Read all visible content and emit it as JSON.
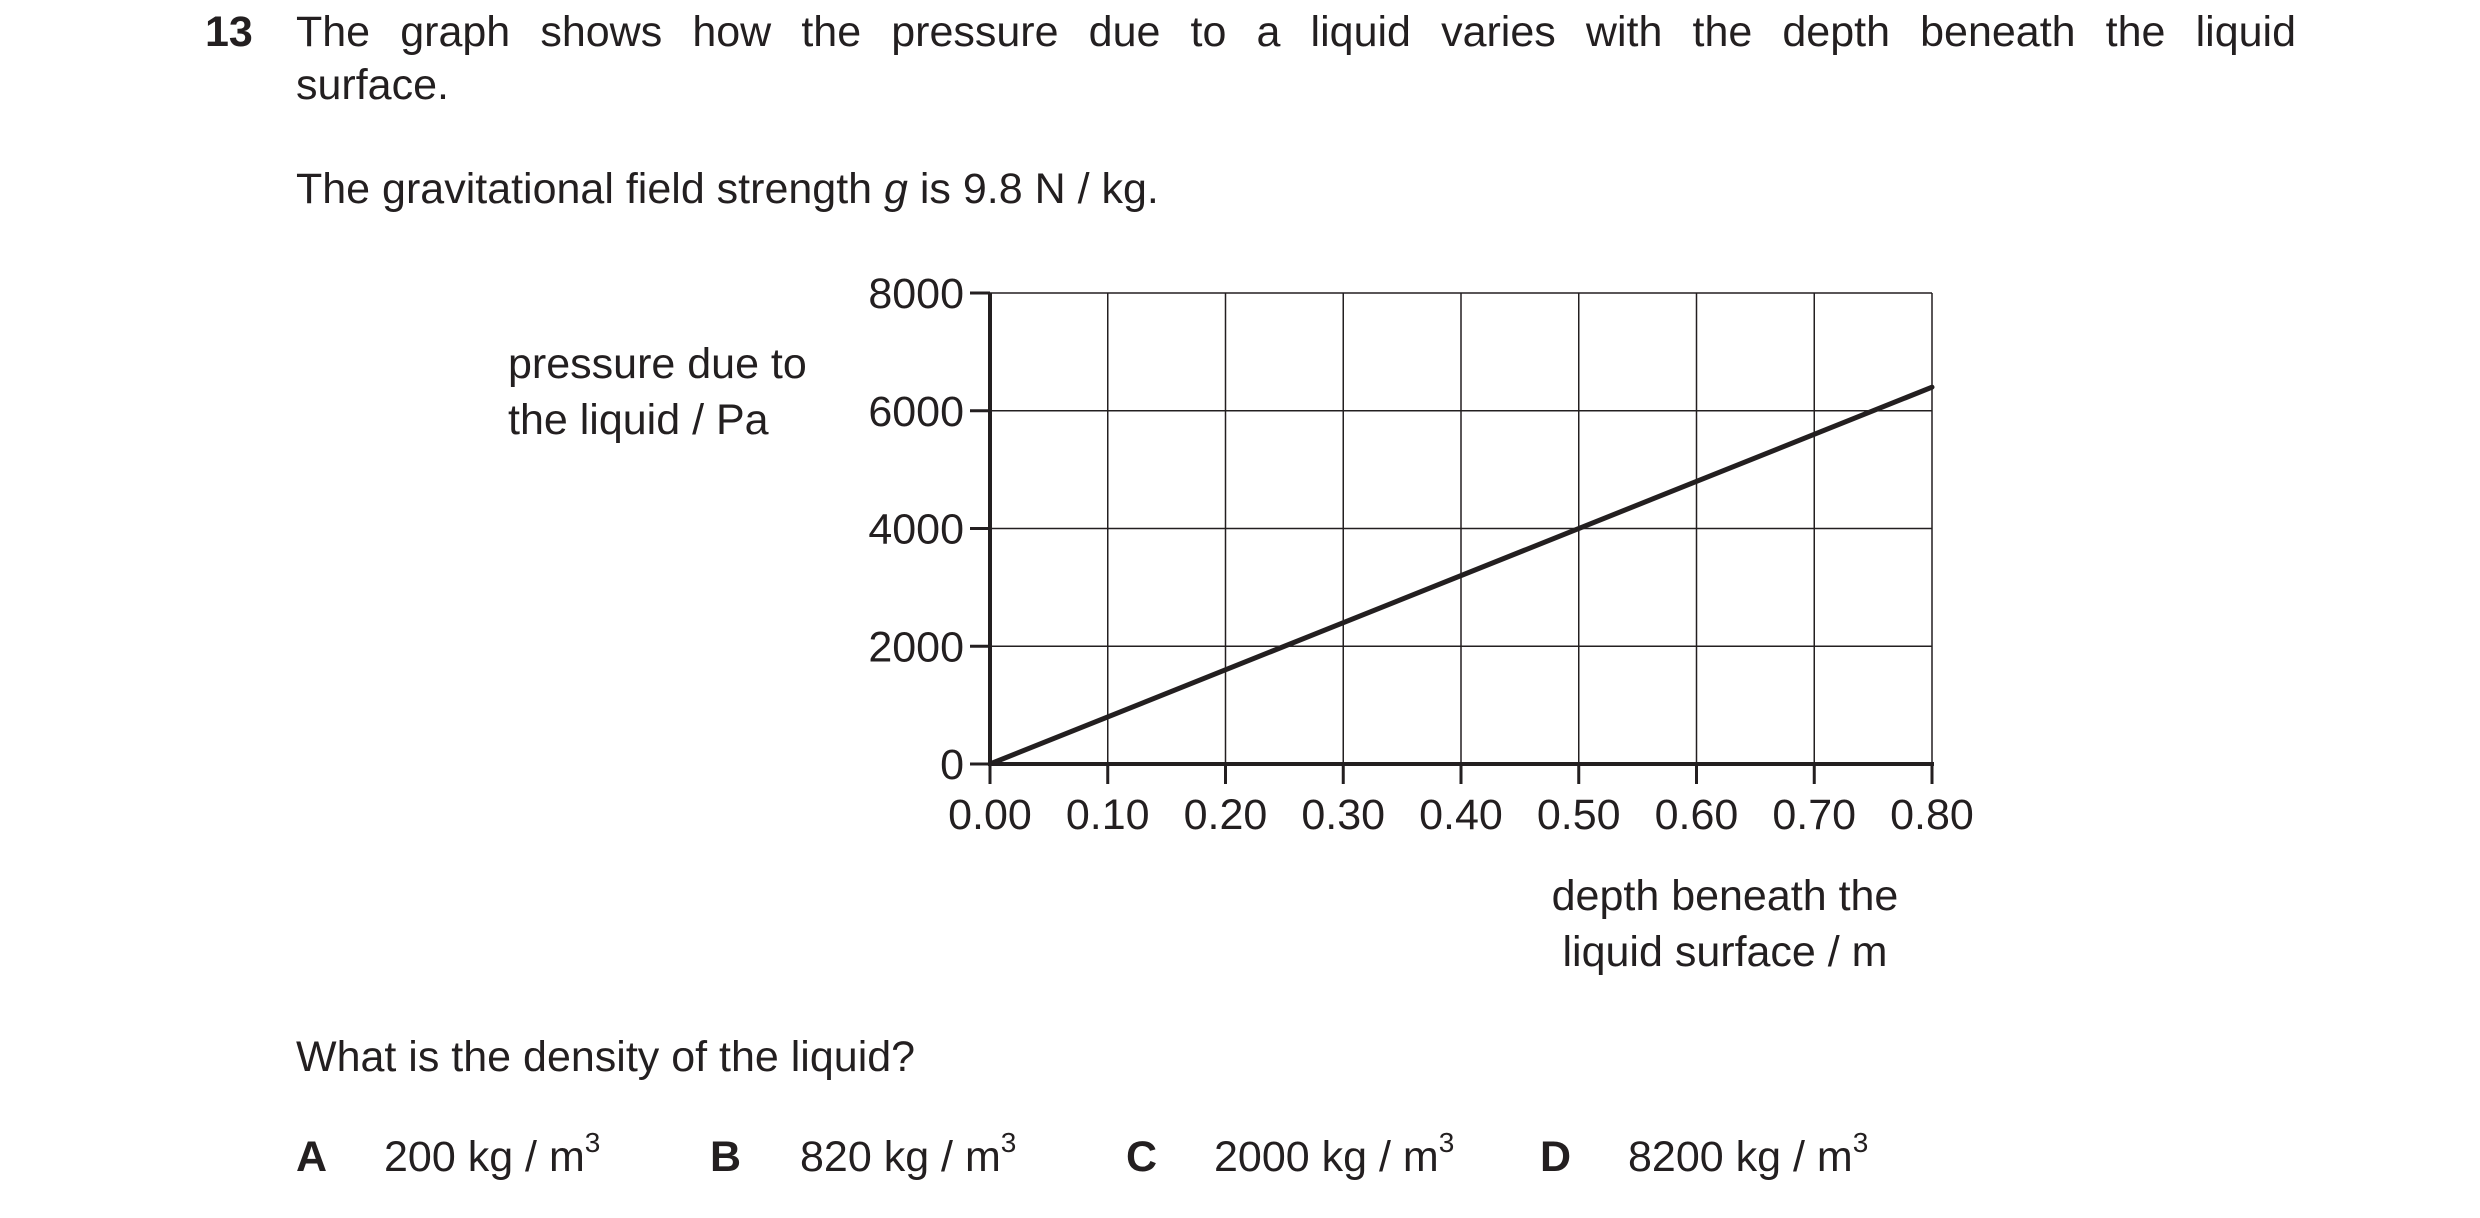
{
  "question": {
    "number": "13",
    "line1": "The graph shows how the pressure due to a liquid varies with the depth beneath the liquid",
    "line2": "surface.",
    "g_prefix": "The gravitational field strength ",
    "g_symbol": "g",
    "g_suffix": " is 9.8 N / kg.",
    "prompt": "What is the density of the liquid?"
  },
  "chart_data": {
    "type": "line",
    "ylabel_lines": [
      "pressure due to",
      "the liquid / Pa"
    ],
    "xlabel_lines": [
      "depth beneath the",
      "liquid surface / m"
    ],
    "x_ticks": [
      "0.00",
      "0.10",
      "0.20",
      "0.30",
      "0.40",
      "0.50",
      "0.60",
      "0.70",
      "0.80"
    ],
    "y_ticks": [
      "0",
      "2000",
      "4000",
      "6000",
      "8000"
    ],
    "xlim": [
      0,
      0.8
    ],
    "ylim": [
      0,
      8000
    ],
    "grid": true,
    "series": [
      {
        "x": [
          0,
          0.8
        ],
        "y": [
          0,
          6400
        ]
      }
    ]
  },
  "options": [
    {
      "letter": "A",
      "value": "200 kg / m",
      "sup": "3"
    },
    {
      "letter": "B",
      "value": "820 kg / m",
      "sup": "3"
    },
    {
      "letter": "C",
      "value": "2000 kg / m",
      "sup": "3"
    },
    {
      "letter": "D",
      "value": "8200 kg / m",
      "sup": "3"
    }
  ]
}
